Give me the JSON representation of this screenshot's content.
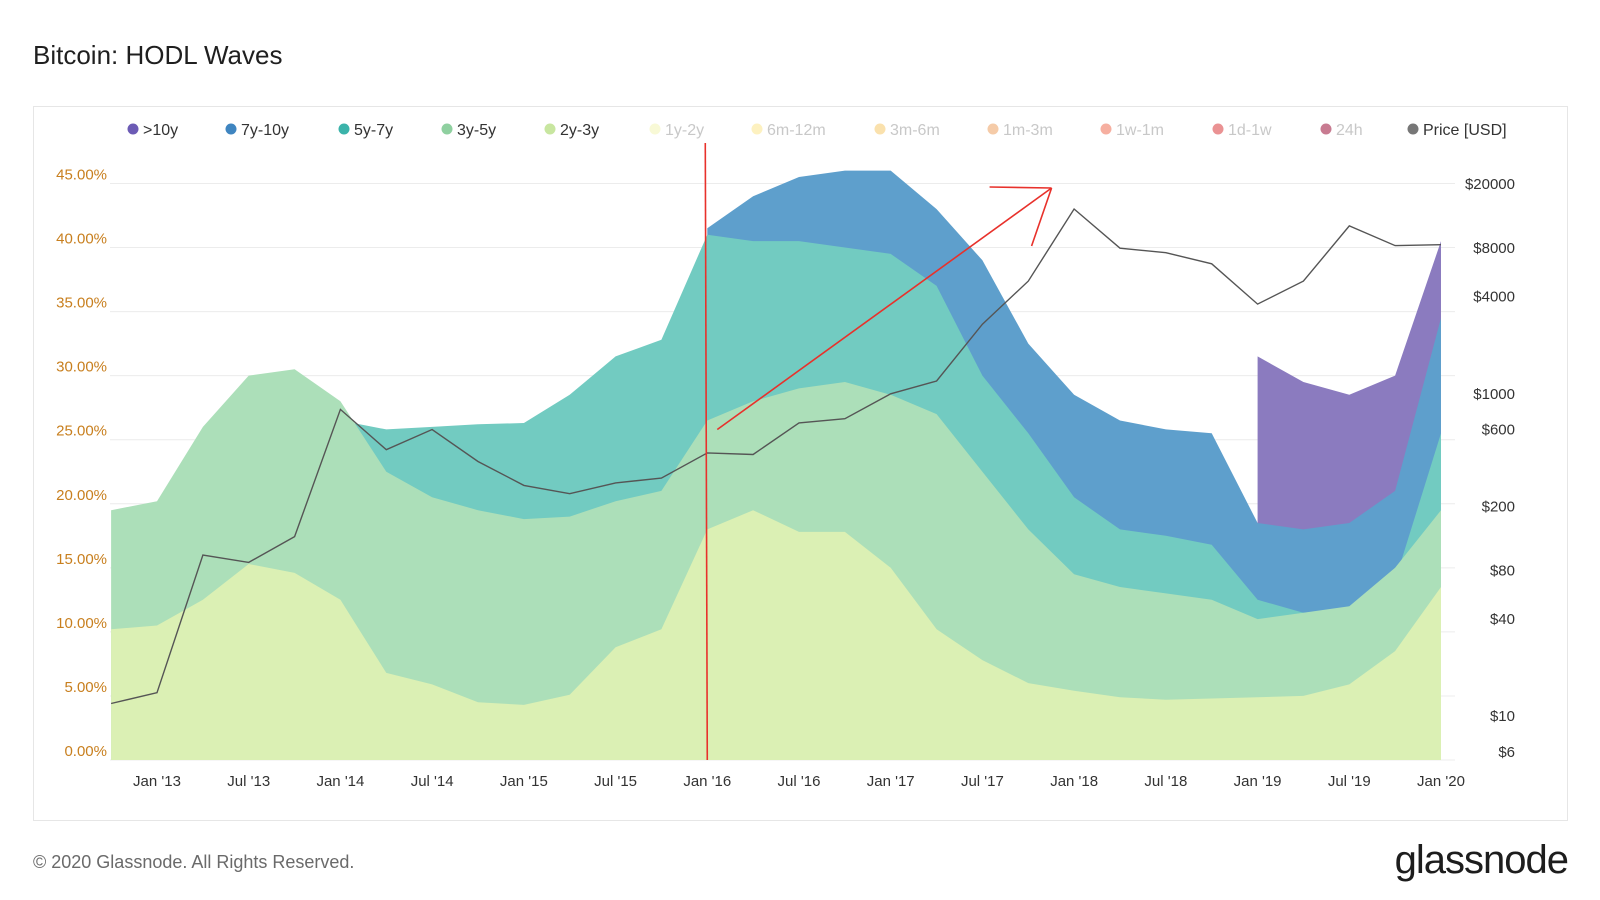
{
  "header": {
    "title": "Bitcoin: HODL Waves"
  },
  "footer": {
    "copyright": "© 2020 Glassnode. All Rights Reserved.",
    "brand": "glassnode"
  },
  "watermark": "glassnode",
  "colors": {
    ">10y": "#8b7bbf",
    "7y-10y": "#5e9fcc",
    "5y-7y": "#72cbc1",
    "3y-5y": "#acdfb9",
    "2y-3y": "#dbf0b4",
    "1y-2y": "#f4f6c4",
    "6m-12m": "#fbeea6",
    "3m-6m": "#f6d584",
    "1m-3m": "#efae6b",
    "1w-1m": "#ee7b5c",
    "1d-1w": "#de4a4a",
    "24h": "#a2173f",
    "price": "#555555",
    "annotation": "#e8312b",
    "yaxis_label": "#c87f1e"
  },
  "chart_data": {
    "type": "area",
    "title": "Bitcoin: HODL Waves",
    "legend": [
      {
        "name": ">10y",
        "color": "#6c5bb5",
        "enabled": true
      },
      {
        "name": "7y-10y",
        "color": "#3f85c0",
        "enabled": true
      },
      {
        "name": "5y-7y",
        "color": "#3bb3aa",
        "enabled": true
      },
      {
        "name": "3y-5y",
        "color": "#8fd0a0",
        "enabled": true
      },
      {
        "name": "2y-3y",
        "color": "#c8e6a0",
        "enabled": true
      },
      {
        "name": "1y-2y",
        "color": "#f2f4b4",
        "enabled": false
      },
      {
        "name": "6m-12m",
        "color": "#fbe58d",
        "enabled": false
      },
      {
        "name": "3m-6m",
        "color": "#f5c96a",
        "enabled": false
      },
      {
        "name": "1m-3m",
        "color": "#eda160",
        "enabled": false
      },
      {
        "name": "1w-1m",
        "color": "#ee6e52",
        "enabled": false
      },
      {
        "name": "1d-1w",
        "color": "#d8383a",
        "enabled": false
      },
      {
        "name": "24h",
        "color": "#9b0e36",
        "enabled": false
      },
      {
        "name": "Price [USD]",
        "color": "#777777",
        "enabled": true
      }
    ],
    "legend_position": "top",
    "x_ticks": [
      "Jan '13",
      "Jul '13",
      "Jan '14",
      "Jul '14",
      "Jan '15",
      "Jul '15",
      "Jan '16",
      "Jul '16",
      "Jan '17",
      "Jul '17",
      "Jan '18",
      "Jul '18",
      "Jan '19",
      "Jul '19",
      "Jan '20"
    ],
    "y_ticks": [
      "0.00%",
      "5.00%",
      "10.00%",
      "15.00%",
      "20.00%",
      "25.00%",
      "30.00%",
      "35.00%",
      "40.00%",
      "45.00%"
    ],
    "ylim": [
      0,
      48
    ],
    "price_ticks": [
      "$6",
      "$10",
      "$40",
      "$80",
      "$200",
      "$600",
      "$1000",
      "$4000",
      "$8000",
      "$20000"
    ],
    "price_scale": "log",
    "grid": "horizontal",
    "x": [
      "2012-10",
      "2013-01",
      "2013-04",
      "2013-07",
      "2013-10",
      "2014-01",
      "2014-04",
      "2014-07",
      "2014-10",
      "2015-01",
      "2015-04",
      "2015-07",
      "2015-10",
      "2016-01",
      "2016-04",
      "2016-07",
      "2016-10",
      "2017-01",
      "2017-04",
      "2017-07",
      "2017-10",
      "2018-01",
      "2018-04",
      "2018-07",
      "2018-10",
      "2019-01",
      "2019-04",
      "2019-07",
      "2019-10",
      "2020-01"
    ],
    "series": [
      {
        "name": "2y-3y",
        "values": [
          10.2,
          10.5,
          12.5,
          15.3,
          14.6,
          12.5,
          6.8,
          5.9,
          4.5,
          4.3,
          5.1,
          8.8,
          10.2,
          18.0,
          19.5,
          17.8,
          17.8,
          15.0,
          10.2,
          7.8,
          6.0,
          5.4,
          4.9,
          4.7,
          4.8,
          4.9,
          5.0,
          5.9,
          8.5,
          13.5
        ]
      },
      {
        "name": "3y-5y",
        "values": [
          19.5,
          20.2,
          26.0,
          30.0,
          30.5,
          28.0,
          22.5,
          20.5,
          19.5,
          18.8,
          19.0,
          20.2,
          21.0,
          26.5,
          28.0,
          29.0,
          29.5,
          28.5,
          27.0,
          22.5,
          18.0,
          14.5,
          13.5,
          13.0,
          12.5,
          11.0,
          11.5,
          12.0,
          15.0,
          19.5
        ]
      },
      {
        "name": "5y-7y",
        "values": [
          null,
          null,
          null,
          null,
          null,
          26.5,
          25.8,
          26.0,
          26.2,
          26.3,
          28.5,
          31.5,
          32.8,
          41.0,
          40.5,
          40.5,
          40.0,
          39.5,
          37.0,
          30.0,
          25.5,
          20.5,
          18.0,
          17.5,
          16.8,
          12.5,
          11.5,
          11.8,
          14.0,
          25.5
        ]
      },
      {
        "name": "7y-10y",
        "values": [
          null,
          null,
          null,
          null,
          null,
          null,
          null,
          null,
          null,
          null,
          null,
          null,
          null,
          41.5,
          44.0,
          45.5,
          46.0,
          46.0,
          43.0,
          39.0,
          32.5,
          28.5,
          26.5,
          25.8,
          25.5,
          18.5,
          18.0,
          18.5,
          21.0,
          34.5
        ]
      },
      {
        "name": ">10y",
        "values": [
          null,
          null,
          null,
          null,
          null,
          null,
          null,
          null,
          null,
          null,
          null,
          null,
          null,
          null,
          null,
          null,
          null,
          null,
          null,
          null,
          null,
          null,
          null,
          null,
          null,
          31.5,
          29.5,
          28.5,
          30.0,
          40.5
        ]
      },
      {
        "name": "Price [USD]",
        "values": [
          12,
          14,
          100,
          90,
          130,
          800,
          450,
          600,
          380,
          270,
          240,
          280,
          300,
          430,
          420,
          660,
          700,
          1000,
          1200,
          2700,
          5000,
          14000,
          8000,
          7500,
          6400,
          3600,
          5000,
          11000,
          8300,
          8400
        ]
      }
    ],
    "annotations": [
      {
        "type": "vertical-line",
        "at": "2016-01"
      },
      {
        "type": "arrow",
        "from_x": "2016-01",
        "from_price": 600,
        "to_x": "2017-11"
      }
    ]
  }
}
